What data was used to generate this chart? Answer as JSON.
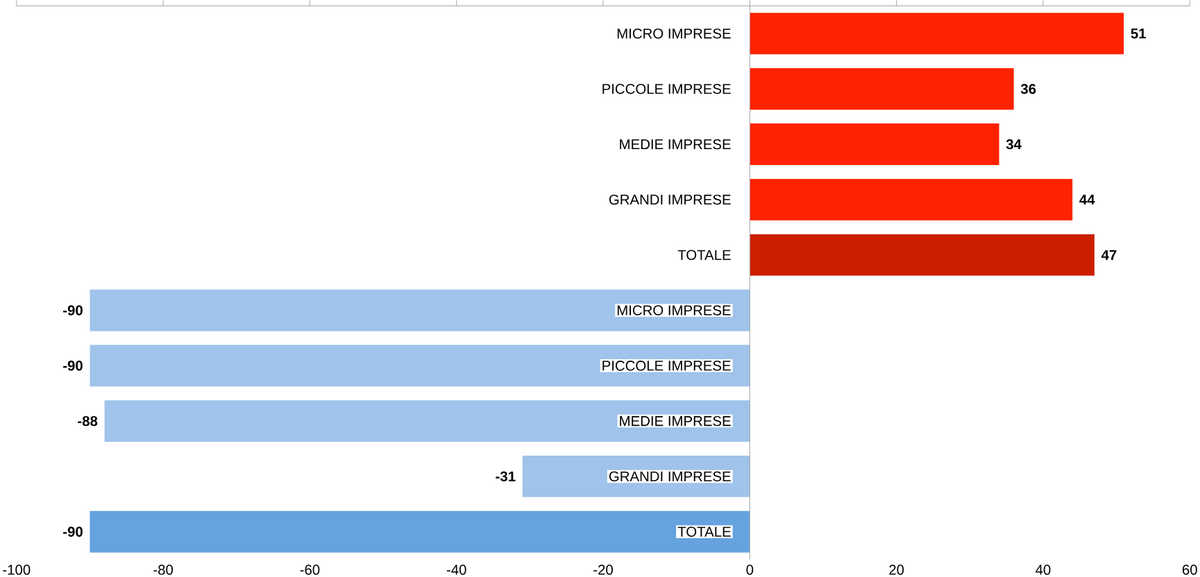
{
  "chart_data": {
    "type": "bar",
    "orientation": "horizontal",
    "categories": [
      "MICRO IMPRESE",
      "PICCOLE IMPRESE",
      "MEDIE IMPRESE",
      "GRANDI IMPRESE",
      "TOTALE",
      "MICRO IMPRESE",
      "PICCOLE IMPRESE",
      "MEDIE IMPRESE",
      "GRANDI IMPRESE",
      "TOTALE"
    ],
    "values": [
      51,
      36,
      34,
      44,
      47,
      -90,
      -90,
      -88,
      -31,
      -90
    ],
    "colors": [
      "#ff2200",
      "#ff2200",
      "#ff2200",
      "#ff2200",
      "#cc1f00",
      "#9fc3ea",
      "#9fc3ea",
      "#9fc3ea",
      "#9fc3ea",
      "#65a3de"
    ],
    "xlim": [
      -100,
      60
    ],
    "xticks": [
      -100,
      -80,
      -60,
      -40,
      -20,
      0,
      20,
      40,
      60
    ],
    "data_labels": true
  }
}
